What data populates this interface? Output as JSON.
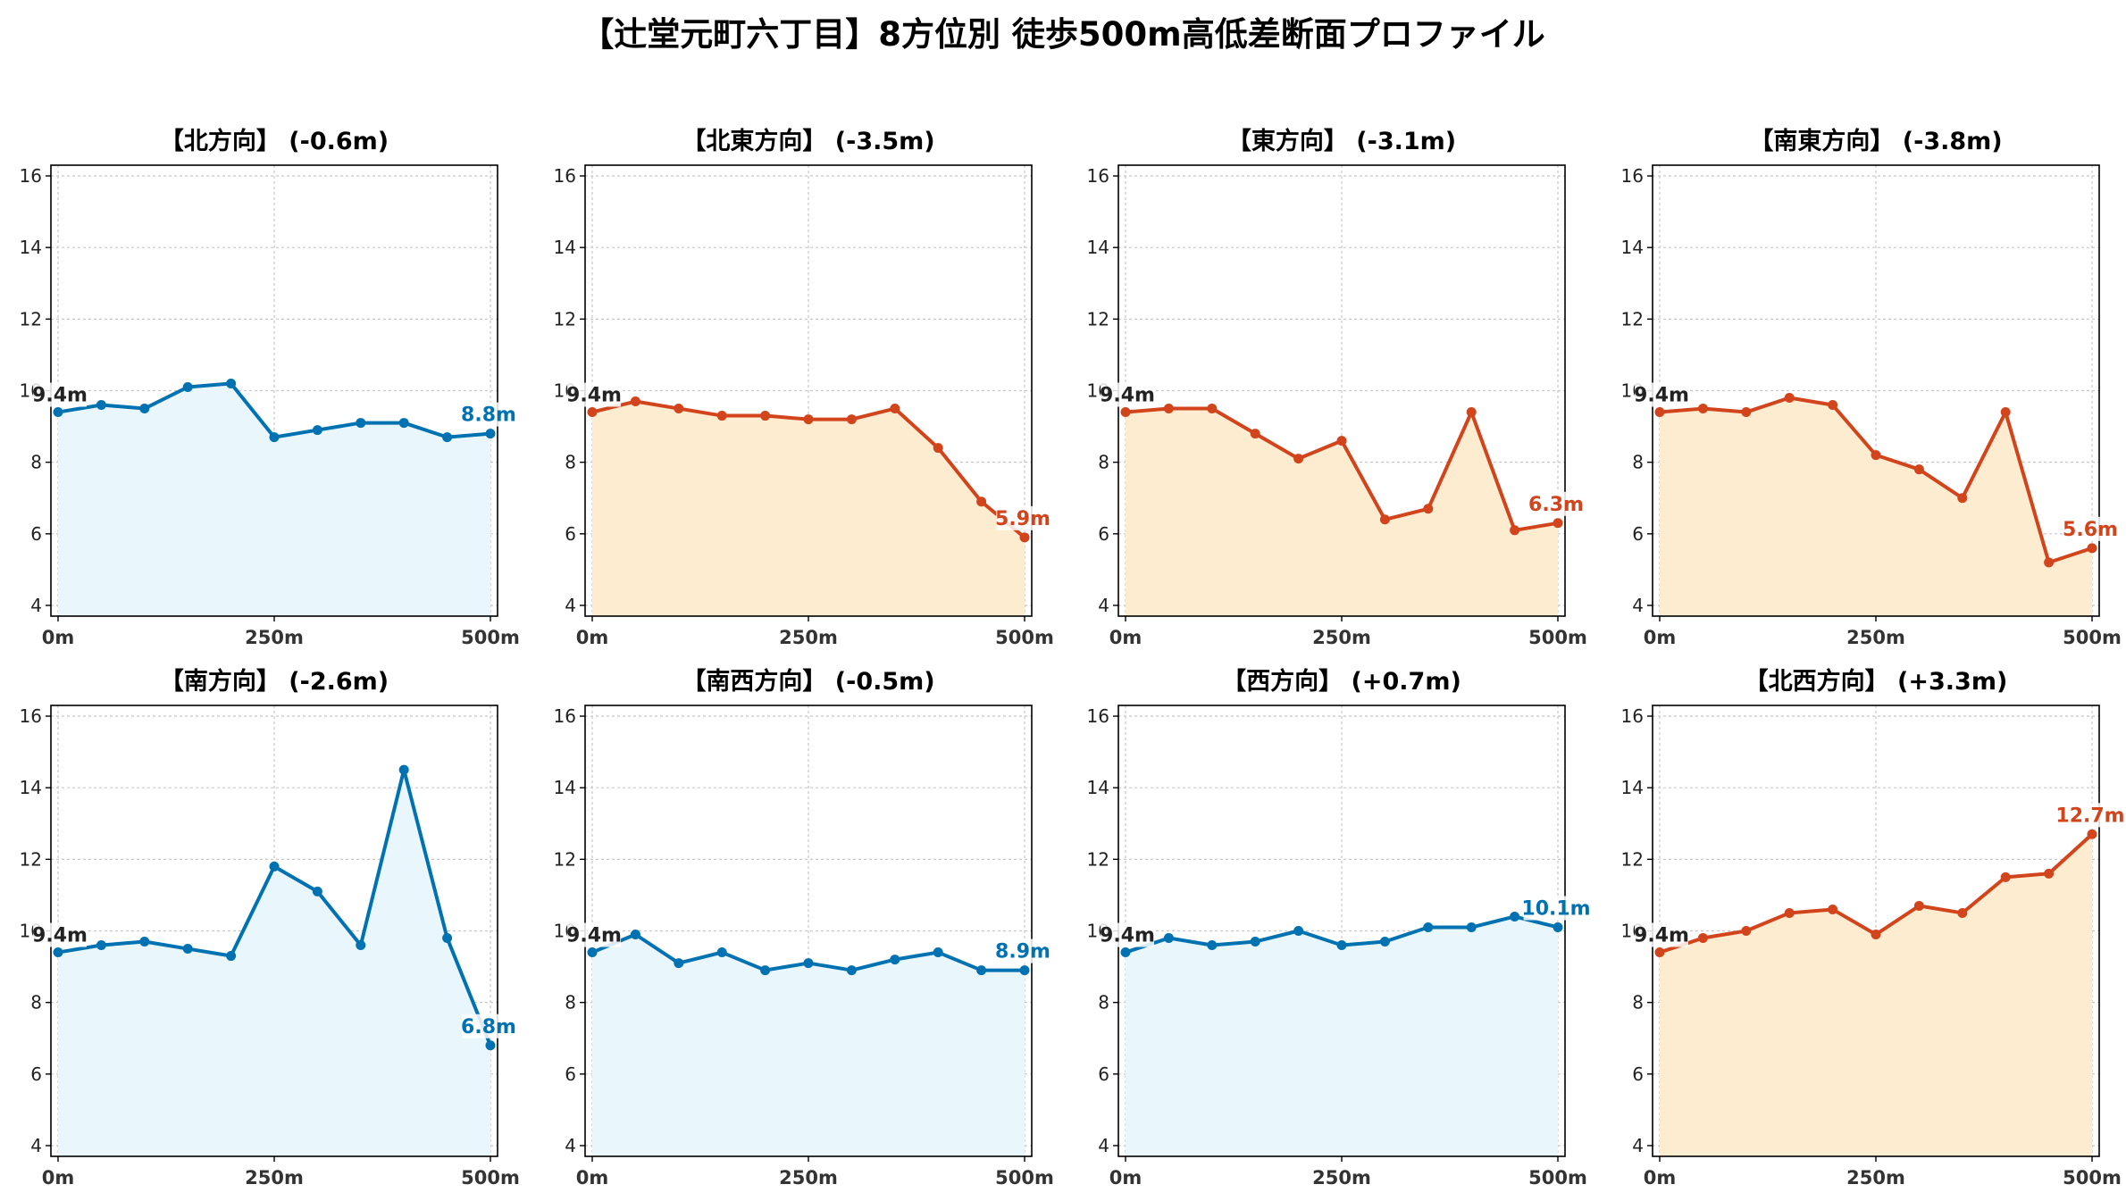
{
  "figure": {
    "title": "【辻堂元町六丁目】8方位別 徒歩500m高低差断面プロファイル"
  },
  "colors": {
    "down_line": "#0072b2",
    "down_fill": "#e9f6fb",
    "up_line": "#d1441c",
    "up_fill": "#fdeccf",
    "start_label": "#222222"
  },
  "chart_data": [
    {
      "type": "area",
      "title": "【北方向】 (-0.6m)",
      "style": "down",
      "x": [
        0,
        50,
        100,
        150,
        200,
        250,
        300,
        350,
        400,
        450,
        500
      ],
      "values": [
        9.4,
        9.6,
        9.5,
        10.1,
        10.2,
        8.7,
        8.9,
        9.1,
        9.1,
        8.7,
        8.8
      ],
      "start_label": "9.4m",
      "end_label": "8.8m",
      "xlim": [
        0,
        500
      ],
      "ylim": [
        3.7,
        16.3
      ],
      "xticks": [
        0,
        250,
        500
      ],
      "xtick_labels": [
        "0m",
        "250m",
        "500m"
      ],
      "yticks": [
        4,
        6,
        8,
        10,
        12,
        14,
        16
      ],
      "ytick_labels": [
        "4",
        "6",
        "8",
        "10",
        "12",
        "14",
        "16"
      ],
      "grid": true
    },
    {
      "type": "area",
      "title": "【北東方向】 (-3.5m)",
      "style": "up",
      "x": [
        0,
        50,
        100,
        150,
        200,
        250,
        300,
        350,
        400,
        450,
        500
      ],
      "values": [
        9.4,
        9.7,
        9.5,
        9.3,
        9.3,
        9.2,
        9.2,
        9.5,
        8.4,
        6.9,
        5.9
      ],
      "start_label": "9.4m",
      "end_label": "5.9m",
      "xlim": [
        0,
        500
      ],
      "ylim": [
        3.7,
        16.3
      ],
      "xticks": [
        0,
        250,
        500
      ],
      "xtick_labels": [
        "0m",
        "250m",
        "500m"
      ],
      "yticks": [
        4,
        6,
        8,
        10,
        12,
        14,
        16
      ],
      "ytick_labels": [
        "4",
        "6",
        "8",
        "10",
        "12",
        "14",
        "16"
      ],
      "grid": true
    },
    {
      "type": "area",
      "title": "【東方向】 (-3.1m)",
      "style": "up",
      "x": [
        0,
        50,
        100,
        150,
        200,
        250,
        300,
        350,
        400,
        450,
        500
      ],
      "values": [
        9.4,
        9.5,
        9.5,
        8.8,
        8.1,
        8.6,
        6.4,
        6.7,
        9.4,
        6.1,
        6.3
      ],
      "start_label": "9.4m",
      "end_label": "6.3m",
      "xlim": [
        0,
        500
      ],
      "ylim": [
        3.7,
        16.3
      ],
      "xticks": [
        0,
        250,
        500
      ],
      "xtick_labels": [
        "0m",
        "250m",
        "500m"
      ],
      "yticks": [
        4,
        6,
        8,
        10,
        12,
        14,
        16
      ],
      "ytick_labels": [
        "4",
        "6",
        "8",
        "10",
        "12",
        "14",
        "16"
      ],
      "grid": true
    },
    {
      "type": "area",
      "title": "【南東方向】 (-3.8m)",
      "style": "up",
      "x": [
        0,
        50,
        100,
        150,
        200,
        250,
        300,
        350,
        400,
        450,
        500
      ],
      "values": [
        9.4,
        9.5,
        9.4,
        9.8,
        9.6,
        8.2,
        7.8,
        7.0,
        9.4,
        5.2,
        5.6
      ],
      "start_label": "9.4m",
      "end_label": "5.6m",
      "xlim": [
        0,
        500
      ],
      "ylim": [
        3.7,
        16.3
      ],
      "xticks": [
        0,
        250,
        500
      ],
      "xtick_labels": [
        "0m",
        "250m",
        "500m"
      ],
      "yticks": [
        4,
        6,
        8,
        10,
        12,
        14,
        16
      ],
      "ytick_labels": [
        "4",
        "6",
        "8",
        "10",
        "12",
        "14",
        "16"
      ],
      "grid": true
    },
    {
      "type": "area",
      "title": "【南方向】 (-2.6m)",
      "style": "down",
      "x": [
        0,
        50,
        100,
        150,
        200,
        250,
        300,
        350,
        400,
        450,
        500
      ],
      "values": [
        9.4,
        9.6,
        9.7,
        9.5,
        9.3,
        11.8,
        11.1,
        9.6,
        14.5,
        9.8,
        6.8
      ],
      "start_label": "9.4m",
      "end_label": "6.8m",
      "xlim": [
        0,
        500
      ],
      "ylim": [
        3.7,
        16.3
      ],
      "xticks": [
        0,
        250,
        500
      ],
      "xtick_labels": [
        "0m",
        "250m",
        "500m"
      ],
      "yticks": [
        4,
        6,
        8,
        10,
        12,
        14,
        16
      ],
      "ytick_labels": [
        "4",
        "6",
        "8",
        "10",
        "12",
        "14",
        "16"
      ],
      "grid": true
    },
    {
      "type": "area",
      "title": "【南西方向】 (-0.5m)",
      "style": "down",
      "x": [
        0,
        50,
        100,
        150,
        200,
        250,
        300,
        350,
        400,
        450,
        500
      ],
      "values": [
        9.4,
        9.9,
        9.1,
        9.4,
        8.9,
        9.1,
        8.9,
        9.2,
        9.4,
        8.9,
        8.9
      ],
      "start_label": "9.4m",
      "end_label": "8.9m",
      "xlim": [
        0,
        500
      ],
      "ylim": [
        3.7,
        16.3
      ],
      "xticks": [
        0,
        250,
        500
      ],
      "xtick_labels": [
        "0m",
        "250m",
        "500m"
      ],
      "yticks": [
        4,
        6,
        8,
        10,
        12,
        14,
        16
      ],
      "ytick_labels": [
        "4",
        "6",
        "8",
        "10",
        "12",
        "14",
        "16"
      ],
      "grid": true
    },
    {
      "type": "area",
      "title": "【西方向】 (+0.7m)",
      "style": "down",
      "x": [
        0,
        50,
        100,
        150,
        200,
        250,
        300,
        350,
        400,
        450,
        500
      ],
      "values": [
        9.4,
        9.8,
        9.6,
        9.7,
        10.0,
        9.6,
        9.7,
        10.1,
        10.1,
        10.4,
        10.1
      ],
      "start_label": "9.4m",
      "end_label": "10.1m",
      "xlim": [
        0,
        500
      ],
      "ylim": [
        3.7,
        16.3
      ],
      "xticks": [
        0,
        250,
        500
      ],
      "xtick_labels": [
        "0m",
        "250m",
        "500m"
      ],
      "yticks": [
        4,
        6,
        8,
        10,
        12,
        14,
        16
      ],
      "ytick_labels": [
        "4",
        "6",
        "8",
        "10",
        "12",
        "14",
        "16"
      ],
      "grid": true
    },
    {
      "type": "area",
      "title": "【北西方向】 (+3.3m)",
      "style": "up",
      "x": [
        0,
        50,
        100,
        150,
        200,
        250,
        300,
        350,
        400,
        450,
        500
      ],
      "values": [
        9.4,
        9.8,
        10.0,
        10.5,
        10.6,
        9.9,
        10.7,
        10.5,
        11.5,
        11.6,
        12.7
      ],
      "start_label": "9.4m",
      "end_label": "12.7m",
      "xlim": [
        0,
        500
      ],
      "ylim": [
        3.7,
        16.3
      ],
      "xticks": [
        0,
        250,
        500
      ],
      "xtick_labels": [
        "0m",
        "250m",
        "500m"
      ],
      "yticks": [
        4,
        6,
        8,
        10,
        12,
        14,
        16
      ],
      "ytick_labels": [
        "4",
        "6",
        "8",
        "10",
        "12",
        "14",
        "16"
      ],
      "grid": true
    }
  ]
}
